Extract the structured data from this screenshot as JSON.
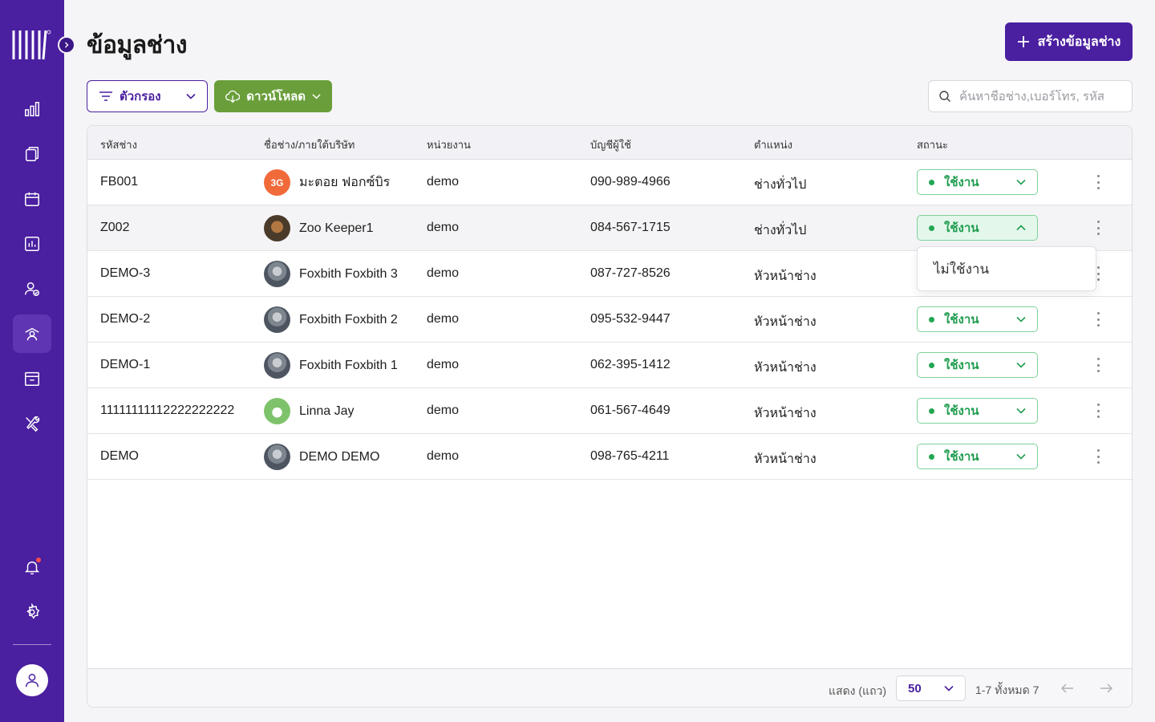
{
  "page": {
    "title": "ข้อมูลช่าง",
    "create_button": "สร้างข้อมูลช่าง"
  },
  "toolbar": {
    "filter_label": "ตัวกรอง",
    "download_label": "ดาวน์โหลด",
    "search_placeholder": "ค้นหาชื่อช่าง,เบอร์โทร, รหัส"
  },
  "sidebar": {
    "icons": [
      "logo-icon",
      "dashboard-chart-icon",
      "documents-icon",
      "calendar-icon",
      "report-icon",
      "user-check-icon",
      "technician-icon",
      "archive-icon",
      "tools-icon",
      "bell-icon",
      "settings-icon",
      "user-icon"
    ],
    "active": "technician-icon",
    "has_notification": true
  },
  "table": {
    "columns": [
      "รหัสช่าง",
      "ชื่อช่าง/ภายใต้บริษัท",
      "หน่วยงาน",
      "บัญชีผู้ใช้",
      "ตำแหน่ง",
      "สถานะ"
    ],
    "rows": [
      {
        "code": "FB001",
        "name": "มะตอย ฟอกซ์บิร",
        "avatar": "orange-logo",
        "unit": "demo",
        "account": "090-989-4966",
        "position": "ช่างทั่วไป",
        "status": "ใช้งาน"
      },
      {
        "code": "Z002",
        "name": "Zoo Keeper1",
        "avatar": "animal-photo",
        "unit": "demo",
        "account": "084-567-1715",
        "position": "ช่างทั่วไป",
        "status": "ใช้งาน"
      },
      {
        "code": "DEMO-3",
        "name": "Foxbith Foxbith 3",
        "avatar": "photo",
        "unit": "demo",
        "account": "087-727-8526",
        "position": "หัวหน้าช่าง",
        "status": ""
      },
      {
        "code": "DEMO-2",
        "name": "Foxbith Foxbith 2",
        "avatar": "photo",
        "unit": "demo",
        "account": "095-532-9447",
        "position": "หัวหน้าช่าง",
        "status": "ใช้งาน"
      },
      {
        "code": "DEMO-1",
        "name": "Foxbith Foxbith 1",
        "avatar": "photo",
        "unit": "demo",
        "account": "062-395-1412",
        "position": "หัวหน้าช่าง",
        "status": "ใช้งาน"
      },
      {
        "code": "11111111112222222222",
        "name": "Linna Jay",
        "avatar": "green-photo",
        "unit": "demo",
        "account": "061-567-4649",
        "position": "หัวหน้าช่าง",
        "status": "ใช้งาน"
      },
      {
        "code": "DEMO",
        "name": "DEMO DEMO",
        "avatar": "photo",
        "unit": "demo",
        "account": "098-765-4211",
        "position": "หัวหน้าช่าง",
        "status": "ใช้งาน"
      }
    ],
    "open_dropdown_option": "ไม่ใช้งาน"
  },
  "pagination": {
    "rows_label": "แสดง (แถว)",
    "rows_per_page": "50",
    "range_text": "1-7 ทั้งหมด 7"
  },
  "colors": {
    "brand": "#4a1fa0",
    "download": "#6a9e3a",
    "status": "#1f9d4f"
  }
}
